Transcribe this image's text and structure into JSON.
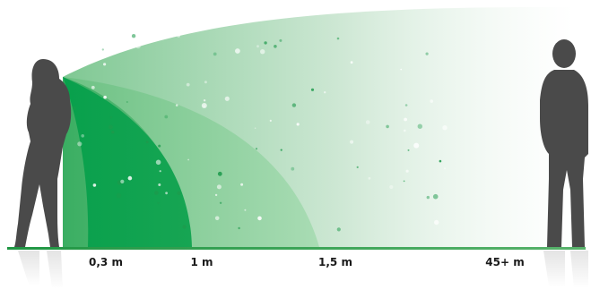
{
  "distances": [
    {
      "label": "0,3 m"
    },
    {
      "label": "1 m"
    },
    {
      "label": "1,5 m"
    },
    {
      "label": "45+ m"
    }
  ],
  "colors": {
    "zone_intimate": "#0fa14e",
    "zone_personal": "#4cb86f",
    "zone_social": "#9bd6a8",
    "zone_public": "#cfe8d5",
    "ground": "#2e9b4a",
    "person": "#4a4a4a"
  },
  "figures": [
    {
      "icon": "woman-silhouette-icon"
    },
    {
      "icon": "man-silhouette-icon"
    }
  ]
}
